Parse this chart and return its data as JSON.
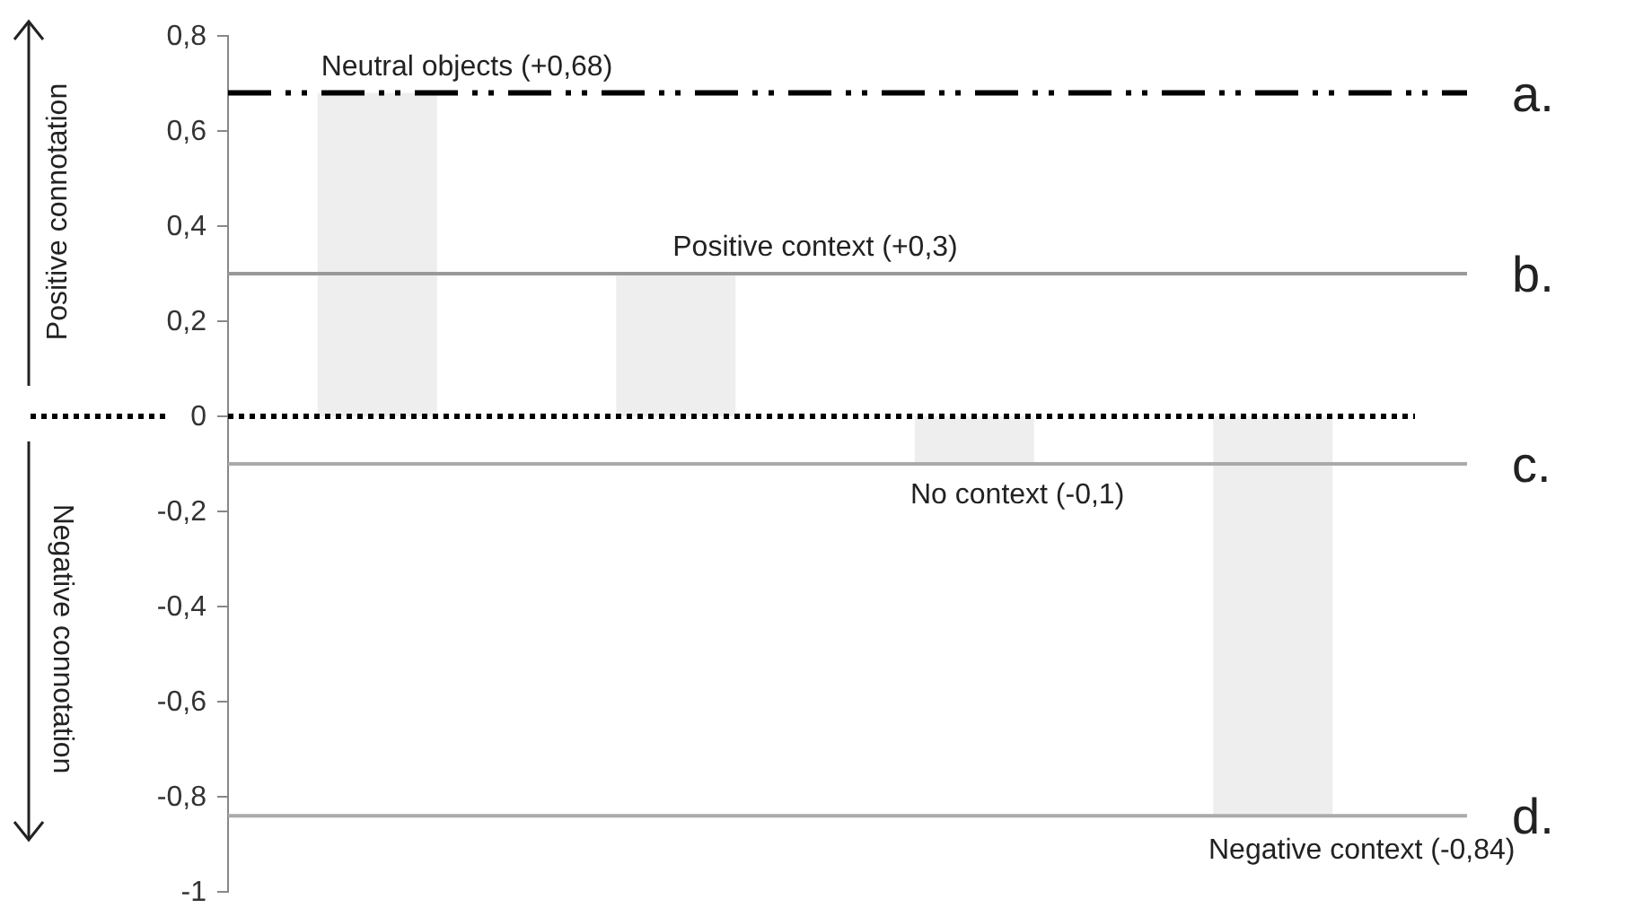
{
  "chart_data": {
    "type": "bar",
    "categories": [
      null,
      null,
      null,
      null
    ],
    "values": [
      0.68,
      0.3,
      -0.1,
      -0.84
    ],
    "color": "#eeeeee",
    "ylim": [
      -1,
      0.8
    ],
    "yticks": [
      {
        "value": 0.8,
        "label": "0,8"
      },
      {
        "value": 0.6,
        "label": "0,6"
      },
      {
        "value": 0.4,
        "label": "0,4"
      },
      {
        "value": 0.2,
        "label": "0,2"
      },
      0,
      {
        "value": -0.2,
        "label": "-0,2"
      },
      {
        "value": -0.4,
        "label": "-0,4"
      },
      {
        "value": -0.6,
        "label": "-0,6"
      },
      {
        "value": -0.8,
        "label": "-0,8"
      },
      -1
    ],
    "tick_labels": "y",
    "grid": false,
    "ref_lines": [
      {
        "axis": "y",
        "value": 0.68,
        "label": "Neutral objects (+0,68)",
        "color": "#000000",
        "line_style": "dashed"
      },
      {
        "axis": "y",
        "value": 0.3,
        "label": "Positive context (+0,3)",
        "color": "#999999",
        "line_style": "solid"
      },
      {
        "axis": "y",
        "value": 0,
        "label": null,
        "color": "#000000",
        "line_style": "dotted"
      },
      {
        "axis": "y",
        "value": -0.1,
        "label": "No context (-0,1)",
        "color": "#aaaaaa",
        "line_style": "solid"
      },
      {
        "axis": "y",
        "value": -0.84,
        "label": "Negative context (-0,84)",
        "color": "#aaaaaa",
        "line_style": "solid"
      }
    ],
    "annotations": [
      "a.",
      "b.",
      "c.",
      "d.",
      "Positive connotation",
      "Negative connotation"
    ]
  }
}
